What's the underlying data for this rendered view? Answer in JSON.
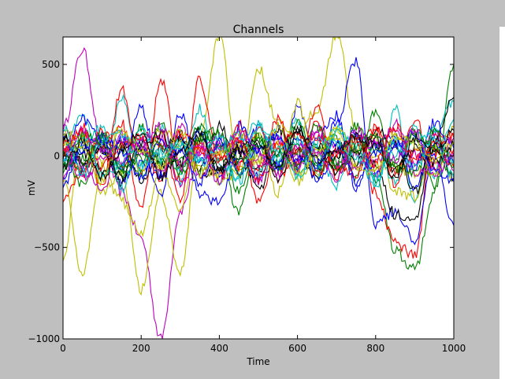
{
  "chart_data": {
    "type": "line",
    "title": "Channels",
    "xlabel": "Time",
    "ylabel": "mV",
    "xlim": [
      0,
      1000
    ],
    "ylim": [
      -1000,
      650
    ],
    "xticks": [
      0,
      200,
      400,
      600,
      800,
      1000
    ],
    "yticks": [
      -1000,
      -500,
      0,
      500
    ],
    "xtick_labels": [
      "0",
      "200",
      "400",
      "600",
      "800",
      "1000"
    ],
    "ytick_labels": [
      "−1000",
      "−500",
      "0",
      "500"
    ],
    "grid": false,
    "legend": "none",
    "colors": [
      "#0000ff",
      "#008000",
      "#ff0000",
      "#00bfbf",
      "#bf00bf",
      "#bfbf00",
      "#000000"
    ],
    "x": [
      0,
      50,
      100,
      150,
      200,
      250,
      300,
      350,
      400,
      450,
      500,
      550,
      600,
      650,
      700,
      750,
      800,
      850,
      900,
      950,
      1000
    ],
    "series": [
      {
        "color": "#bf00bf",
        "values": [
          150,
          580,
          50,
          -200,
          -450,
          -1000,
          -300,
          0,
          50,
          -50,
          0,
          80,
          -20,
          30,
          -60,
          20,
          -40,
          60,
          10,
          -30,
          0
        ]
      },
      {
        "color": "#bfbf00",
        "values": [
          -550,
          120,
          -200,
          -80,
          -730,
          -200,
          -640,
          80,
          660,
          -100,
          480,
          180,
          80,
          260,
          670,
          150,
          0,
          -60,
          -100,
          60,
          -40
        ]
      },
      {
        "color": "#008000",
        "values": [
          80,
          -20,
          40,
          -60,
          30,
          -20,
          60,
          -80,
          -20,
          -300,
          50,
          -40,
          20,
          40,
          -20,
          80,
          -120,
          -520,
          -620,
          -200,
          500
        ]
      },
      {
        "color": "#ff0000",
        "values": [
          -230,
          -100,
          60,
          180,
          -300,
          420,
          -60,
          30,
          -120,
          80,
          -260,
          60,
          -40,
          180,
          -80,
          120,
          -200,
          -480,
          -540,
          120,
          100
        ]
      },
      {
        "color": "#0000ff",
        "values": [
          100,
          -80,
          120,
          -150,
          60,
          -200,
          220,
          -40,
          80,
          -20,
          150,
          -60,
          260,
          -40,
          180,
          520,
          -380,
          -300,
          -460,
          20,
          -380
        ]
      },
      {
        "color": "#00bfbf",
        "values": [
          40,
          220,
          -120,
          310,
          -60,
          150,
          -80,
          260,
          -140,
          90,
          180,
          -30,
          200,
          -100,
          160,
          40,
          -180,
          260,
          -250,
          140,
          300
        ]
      },
      {
        "color": "#000000",
        "values": [
          0,
          -40,
          60,
          -150,
          40,
          -60,
          120,
          -100,
          -80,
          60,
          -180,
          30,
          150,
          -60,
          -20,
          90,
          -50,
          -320,
          -360,
          80,
          320
        ]
      },
      {
        "color": "#bfbf00",
        "values": [
          -120,
          -640,
          -60,
          -250,
          -420,
          -80,
          -300,
          100,
          -150,
          -80,
          120,
          -200,
          300,
          -120,
          150,
          -60,
          100,
          -200,
          -220,
          60,
          -120
        ]
      },
      {
        "color": "#ff0000",
        "values": [
          60,
          120,
          -160,
          360,
          -80,
          120,
          -240,
          420,
          -40,
          180,
          -80,
          200,
          -60,
          260,
          -120,
          60,
          140,
          -100,
          200,
          -60,
          40
        ]
      },
      {
        "color": "#0000ff",
        "values": [
          -40,
          200,
          80,
          -60,
          260,
          -120,
          80,
          -200,
          -260,
          40,
          -120,
          160,
          -60,
          100,
          220,
          -180,
          60,
          120,
          -180,
          80,
          -40
        ]
      },
      {
        "color": "#008000",
        "values": [
          20,
          -160,
          100,
          40,
          -100,
          180,
          -60,
          80,
          120,
          -200,
          60,
          -100,
          180,
          -40,
          100,
          -120,
          240,
          -80,
          120,
          -160,
          60
        ]
      },
      {
        "color": "#bf00bf",
        "values": [
          180,
          -60,
          -200,
          120,
          40,
          -80,
          160,
          -120,
          60,
          100,
          -140,
          40,
          -80,
          160,
          -60,
          20,
          -100,
          180,
          -40,
          120,
          -80
        ]
      },
      {
        "color": "#00bfbf",
        "values": [
          -60,
          40,
          160,
          -180,
          100,
          60,
          -140,
          140,
          -40,
          -120,
          80,
          120,
          -100,
          40,
          -160,
          100,
          40,
          -140,
          160,
          -100,
          200
        ]
      },
      {
        "color": "#000000",
        "values": [
          100,
          20,
          -80,
          60,
          -140,
          40,
          100,
          -60,
          160,
          -40,
          -80,
          140,
          20,
          -120,
          60,
          -40,
          140,
          60,
          -200,
          100,
          -120
        ]
      },
      {
        "color": "#0000ff",
        "values": [
          -100,
          60,
          20,
          100,
          -40,
          -100,
          40,
          120,
          -120,
          160,
          20,
          -60,
          100,
          -140,
          20,
          120,
          -80,
          40,
          -60,
          180,
          40
        ]
      },
      {
        "color": "#ff0000",
        "values": [
          40,
          -80,
          140,
          -40,
          120,
          60,
          -120,
          60,
          20,
          -60,
          140,
          -120,
          40,
          100,
          -60,
          -100,
          160,
          -160,
          40,
          20,
          -60
        ]
      },
      {
        "color": "#bfbf00",
        "values": [
          140,
          80,
          -40,
          160,
          -80,
          140,
          60,
          -80,
          -100,
          120,
          -20,
          60,
          -140,
          20,
          140,
          40,
          -60,
          100,
          80,
          -120,
          160
        ]
      },
      {
        "color": "#008000",
        "values": [
          -80,
          120,
          60,
          -100,
          160,
          -40,
          -20,
          160,
          60,
          -20,
          100,
          -80,
          60,
          -60,
          -40,
          160,
          20,
          -40,
          140,
          40,
          -100
        ]
      },
      {
        "color": "#bf00bf",
        "values": [
          60,
          -120,
          -20,
          80,
          20,
          100,
          -160,
          20,
          100,
          40,
          -60,
          100,
          -40,
          120,
          40,
          -80,
          80,
          140,
          -100,
          -60,
          100
        ]
      },
      {
        "color": "#00bfbf",
        "values": [
          -20,
          100,
          -100,
          -40,
          140,
          -20,
          80,
          -40,
          40,
          120,
          -100,
          20,
          80,
          -80,
          120,
          60,
          -120,
          20,
          100,
          140,
          -20
        ]
      },
      {
        "color": "#000000",
        "values": [
          120,
          -40,
          40,
          -120,
          60,
          120,
          -40,
          100,
          -60,
          20,
          60,
          -140,
          120,
          60,
          -100,
          20,
          100,
          -80,
          40,
          -40,
          60
        ]
      },
      {
        "color": "#0000ff",
        "values": [
          -160,
          40,
          100,
          20,
          -120,
          80,
          20,
          -140,
          80,
          -80,
          40,
          100,
          -20,
          -40,
          80,
          -140,
          20,
          60,
          120,
          -80,
          -140
        ]
      },
      {
        "color": "#ff0000",
        "values": [
          20,
          160,
          -60,
          60,
          100,
          -140,
          120,
          40,
          -20,
          100,
          -120,
          60,
          140,
          -100,
          20,
          100,
          -40,
          160,
          -20,
          60,
          120
        ]
      },
      {
        "color": "#008000",
        "values": [
          -40,
          -60,
          120,
          -80,
          -20,
          60,
          -100,
          100,
          140,
          -100,
          100,
          20,
          -60,
          160,
          -80,
          40,
          120,
          -60,
          -100,
          140,
          -60
        ]
      },
      {
        "color": "#bfbf00",
        "values": [
          80,
          40,
          -140,
          140,
          40,
          -60,
          140,
          -100,
          20,
          60,
          -40,
          160,
          -100,
          40,
          100,
          -60,
          -100,
          120,
          60,
          -20,
          80
        ]
      },
      {
        "color": "#bf00bf",
        "values": [
          -120,
          140,
          40,
          -20,
          80,
          160,
          -60,
          60,
          -140,
          140,
          20,
          -100,
          60,
          20,
          -120,
          140,
          60,
          -20,
          140,
          -120,
          20
        ]
      },
      {
        "color": "#00bfbf",
        "values": [
          160,
          -100,
          80,
          120,
          -60,
          20,
          60,
          -20,
          100,
          -140,
          160,
          40,
          -120,
          80,
          60,
          -20,
          -140,
          80,
          -60,
          100,
          -120
        ]
      },
      {
        "color": "#000000",
        "values": [
          -60,
          80,
          -120,
          40,
          120,
          -120,
          20,
          140,
          -80,
          40,
          80,
          -60,
          160,
          -20,
          20,
          100,
          60,
          -120,
          100,
          20,
          140
        ]
      }
    ]
  }
}
